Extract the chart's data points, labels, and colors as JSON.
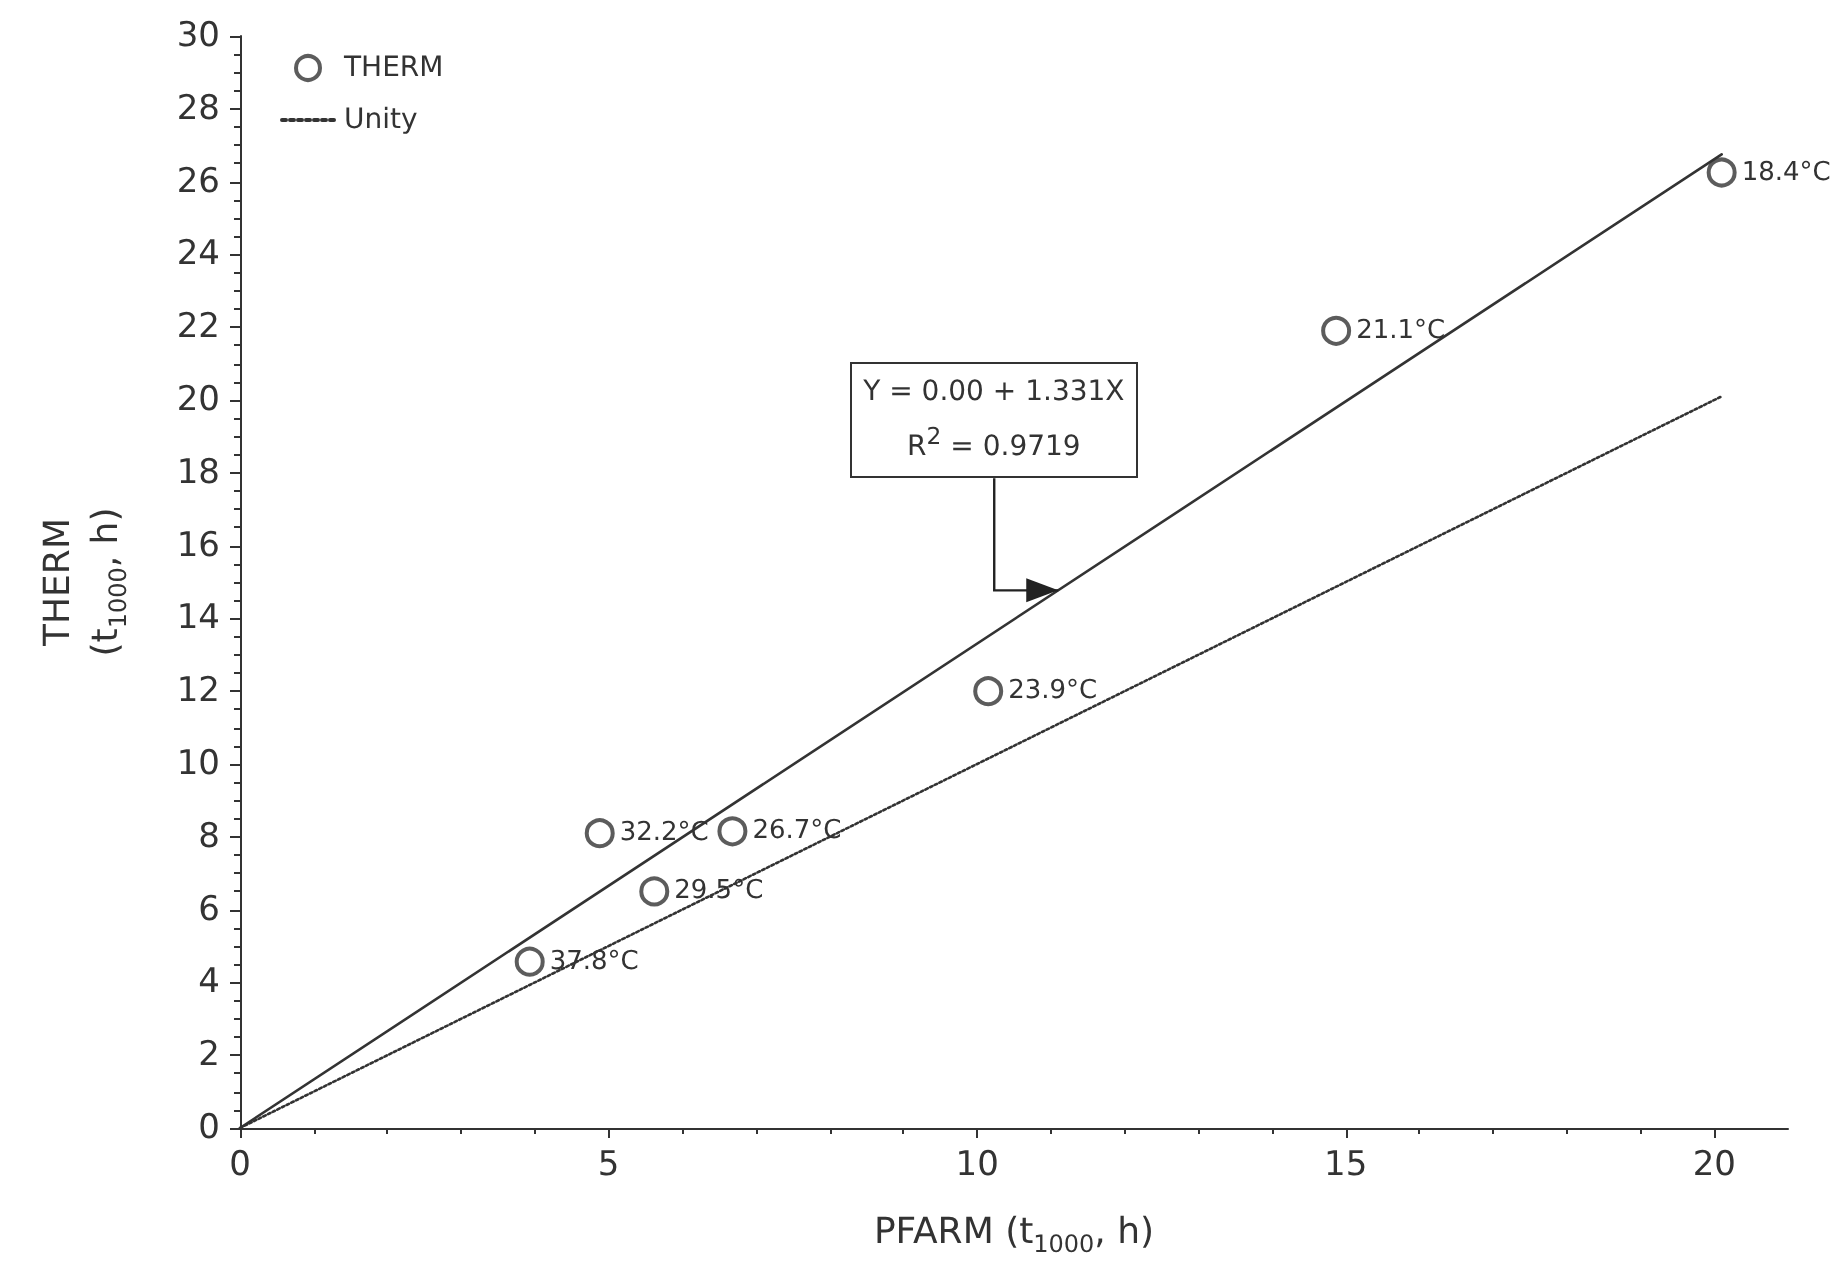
{
  "chart_data": {
    "type": "scatter",
    "xlabel": "PFARM (t$_{1000}$, h)",
    "ylabel": "THERM\n(t$_{1000}$, h)",
    "xlim": [
      0,
      21
    ],
    "xticks": [
      0,
      5,
      10,
      15,
      20
    ],
    "ylim": [
      0,
      30
    ],
    "yticks": [
      0,
      2,
      4,
      6,
      8,
      10,
      12,
      14,
      16,
      18,
      20,
      22,
      24,
      26,
      28,
      30
    ],
    "grid": false,
    "legend": "top left",
    "marker": "circle",
    "series": [
      {
        "name": "THERM",
        "color": "#333333",
        "x": [
          20.1,
          14.87,
          10.15,
          4.88,
          6.68,
          5.62,
          3.93
        ],
        "values": [
          26.25,
          21.9,
          12.0,
          8.1,
          8.15,
          6.5,
          4.57
        ]
      },
      {
        "name": "Unity",
        "type": "line",
        "line_style": "dotted",
        "marker": "none",
        "color": "#333333",
        "x": [
          0,
          20.1
        ],
        "values": [
          0,
          20.1
        ]
      },
      {
        "type": "line",
        "line_style": "solid",
        "marker": "none",
        "color": "#333333",
        "x": [
          0,
          20.1
        ],
        "values": [
          0,
          26.75
        ]
      }
    ],
    "annotations": [
      {
        "text": "18.4°C",
        "x": 20.1,
        "y": 26.25
      },
      {
        "text": "21.1°C",
        "x": 14.87,
        "y": 21.9
      },
      {
        "text": "23.9°C",
        "x": 10.15,
        "y": 12.0
      },
      {
        "text": "32.2°C",
        "x": 4.88,
        "y": 8.1
      },
      {
        "text": "26.7°C",
        "x": 6.68,
        "y": 8.15
      },
      {
        "text": "29.5°C",
        "x": 5.62,
        "y": 6.5
      },
      {
        "text": "37.8°C",
        "x": 3.93,
        "y": 4.57
      },
      {
        "text": "Y = 0.00 + 1.331X\nR$^{2}$ = 0.9719",
        "x": 11.1,
        "y": 14.77
      }
    ]
  }
}
